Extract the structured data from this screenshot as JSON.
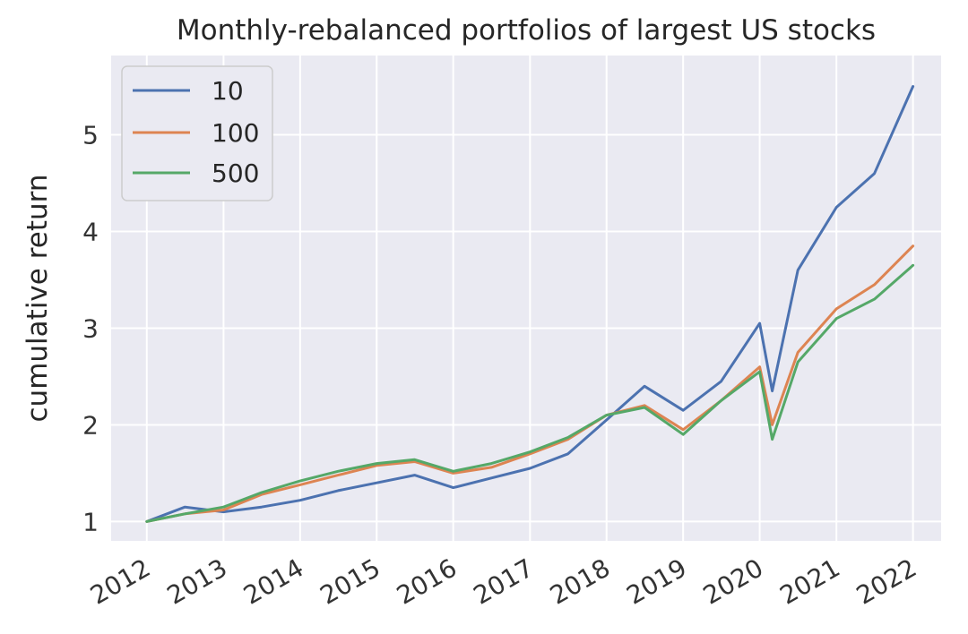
{
  "chart_data": {
    "type": "line",
    "title": "Monthly-rebalanced portfolios of largest US stocks",
    "xlabel": "",
    "ylabel": "cumulative return",
    "x_ticks": [
      "2012",
      "2013",
      "2014",
      "2015",
      "2016",
      "2017",
      "2018",
      "2019",
      "2020",
      "2021",
      "2022"
    ],
    "y_ticks": [
      1,
      2,
      3,
      4,
      5
    ],
    "xlim": [
      "2011-07-15",
      "2022-05-15"
    ],
    "ylim": [
      0.8,
      5.82
    ],
    "grid": true,
    "legend": {
      "position": "top-left"
    },
    "x": [
      "2012-01-01",
      "2012-07-01",
      "2013-01-01",
      "2013-07-01",
      "2014-01-01",
      "2014-07-01",
      "2015-01-01",
      "2015-07-01",
      "2016-01-01",
      "2016-07-01",
      "2017-01-01",
      "2017-07-01",
      "2018-01-01",
      "2018-07-01",
      "2019-01-01",
      "2019-07-01",
      "2020-01-01",
      "2020-03-01",
      "2020-07-01",
      "2021-01-01",
      "2021-07-01",
      "2022-01-01"
    ],
    "series": [
      {
        "name": "10",
        "color": "#4c72b0",
        "values": [
          1.0,
          1.15,
          1.1,
          1.15,
          1.22,
          1.32,
          1.4,
          1.48,
          1.35,
          1.45,
          1.55,
          1.7,
          2.05,
          2.4,
          2.15,
          2.45,
          3.05,
          2.35,
          3.6,
          4.25,
          4.6,
          5.5
        ]
      },
      {
        "name": "100",
        "color": "#dd8452",
        "values": [
          1.0,
          1.08,
          1.12,
          1.28,
          1.38,
          1.48,
          1.58,
          1.62,
          1.5,
          1.56,
          1.7,
          1.85,
          2.1,
          2.2,
          1.95,
          2.25,
          2.6,
          2.0,
          2.75,
          3.2,
          3.45,
          3.85
        ]
      },
      {
        "name": "500",
        "color": "#55a868",
        "values": [
          1.0,
          1.08,
          1.15,
          1.3,
          1.42,
          1.52,
          1.6,
          1.64,
          1.52,
          1.6,
          1.72,
          1.87,
          2.1,
          2.18,
          1.9,
          2.25,
          2.55,
          1.85,
          2.65,
          3.1,
          3.3,
          3.65
        ]
      }
    ]
  }
}
